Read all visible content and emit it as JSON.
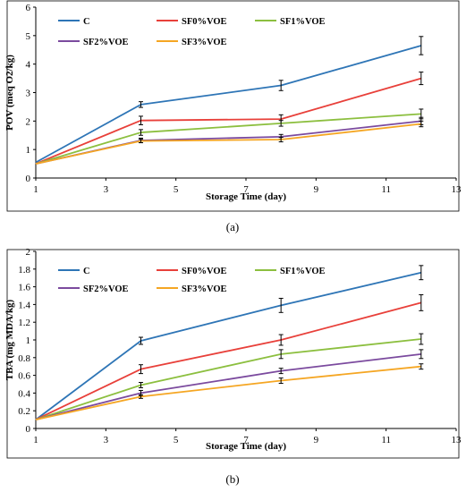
{
  "chart_data": [
    {
      "type": "line",
      "caption": "(a)",
      "xlabel": "Storage Time (day)",
      "ylabel": "POV (meq O2/kg)",
      "xlim": [
        1,
        13
      ],
      "ylim": [
        0,
        6
      ],
      "xticks": [
        "1",
        "3",
        "5",
        "7",
        "9",
        "11",
        "13"
      ],
      "yticks": [
        "0",
        "1",
        "2",
        "3",
        "4",
        "5",
        "6"
      ],
      "x": [
        1,
        4,
        8,
        12
      ],
      "grid": false,
      "legend": "top-left, inside plot",
      "series": [
        {
          "name": "C",
          "color": "#2E75B6",
          "values": [
            0.55,
            2.58,
            3.25,
            4.65
          ],
          "errors": [
            0.03,
            0.1,
            0.18,
            0.32
          ]
        },
        {
          "name": "SF0%VOE",
          "color": "#E8403A",
          "values": [
            0.5,
            2.02,
            2.07,
            3.5
          ],
          "errors": [
            0.03,
            0.15,
            0.15,
            0.22
          ]
        },
        {
          "name": "SF1%VOE",
          "color": "#8CBF3F",
          "values": [
            0.5,
            1.6,
            1.92,
            2.25
          ],
          "errors": [
            0.03,
            0.1,
            0.1,
            0.17
          ]
        },
        {
          "name": "SF2%VOE",
          "color": "#7B4A9E",
          "values": [
            0.5,
            1.32,
            1.45,
            2.0
          ],
          "errors": [
            0.03,
            0.08,
            0.08,
            0.13
          ]
        },
        {
          "name": "SF3%VOE",
          "color": "#F5A623",
          "values": [
            0.5,
            1.3,
            1.35,
            1.9
          ],
          "errors": [
            0.03,
            0.06,
            0.08,
            0.1
          ]
        }
      ]
    },
    {
      "type": "line",
      "caption": "(b)",
      "xlabel": "Storage Time (day)",
      "ylabel": "TBA (mg MDA/kg)",
      "xlim": [
        1,
        13
      ],
      "ylim": [
        0,
        2
      ],
      "xticks": [
        "1",
        "3",
        "5",
        "7",
        "9",
        "11",
        "13"
      ],
      "yticks": [
        "0",
        "0.2",
        "0.4",
        "0.6",
        "0.8",
        "1",
        "1.2",
        "1.4",
        "1.6",
        "1.8",
        "2"
      ],
      "x": [
        1,
        4,
        8,
        12
      ],
      "grid": false,
      "legend": "top-left, inside plot",
      "series": [
        {
          "name": "C",
          "color": "#2E75B6",
          "values": [
            0.1,
            0.99,
            1.39,
            1.76
          ],
          "errors": [
            0.01,
            0.04,
            0.08,
            0.08
          ]
        },
        {
          "name": "SF0%VOE",
          "color": "#E8403A",
          "values": [
            0.1,
            0.67,
            1.0,
            1.42
          ],
          "errors": [
            0.01,
            0.05,
            0.06,
            0.09
          ]
        },
        {
          "name": "SF1%VOE",
          "color": "#8CBF3F",
          "values": [
            0.1,
            0.49,
            0.84,
            1.01
          ],
          "errors": [
            0.01,
            0.03,
            0.05,
            0.06
          ]
        },
        {
          "name": "SF2%VOE",
          "color": "#7B4A9E",
          "values": [
            0.1,
            0.4,
            0.65,
            0.84
          ],
          "errors": [
            0.01,
            0.03,
            0.03,
            0.05
          ]
        },
        {
          "name": "SF3%VOE",
          "color": "#F5A623",
          "values": [
            0.1,
            0.36,
            0.54,
            0.7
          ],
          "errors": [
            0.01,
            0.02,
            0.03,
            0.03
          ]
        }
      ]
    }
  ]
}
